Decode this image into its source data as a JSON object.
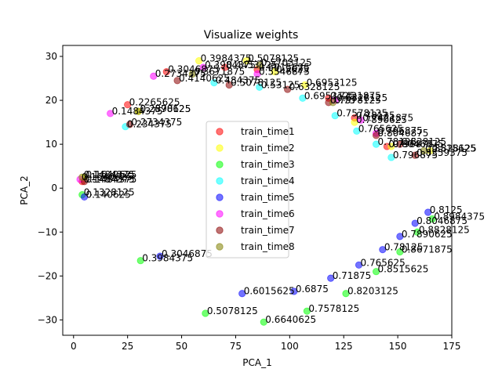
{
  "chart_data": {
    "type": "scatter",
    "title": "Visualize weights",
    "xlabel": "PCA_1",
    "ylabel": "PCA_2",
    "xlim": [
      -5,
      175
    ],
    "ylim": [
      -33.5,
      32.5
    ],
    "xticks": [
      0,
      25,
      50,
      75,
      100,
      125,
      150,
      175
    ],
    "yticks": [
      -30,
      -20,
      -10,
      0,
      10,
      20,
      30
    ],
    "grid": false,
    "legend_position": "center",
    "alpha": 0.55,
    "series": [
      {
        "name": "train_time1",
        "color": "#ff0000",
        "points": [
          {
            "x": 4,
            "y": 1.5,
            "label": "0.1484375"
          },
          {
            "x": 25,
            "y": 19,
            "label": "0.2265625"
          },
          {
            "x": 43,
            "y": 26.5,
            "label": "0.3046875"
          },
          {
            "x": 70,
            "y": 27.5,
            "label": "0.4453125"
          },
          {
            "x": 85,
            "y": 27,
            "label": "0.6015625"
          },
          {
            "x": 118,
            "y": 20.5,
            "label": "0.7421875"
          },
          {
            "x": 130,
            "y": 16,
            "label": "0.78125"
          },
          {
            "x": 145,
            "y": 9.5,
            "label": "0.796875"
          }
        ]
      },
      {
        "name": "train_time2",
        "color": "#ffff00",
        "points": [
          {
            "x": 5,
            "y": 2.5,
            "label": "0.1640625"
          },
          {
            "x": 30,
            "y": 17.5,
            "label": "0.2578125"
          },
          {
            "x": 58,
            "y": 29,
            "label": "0.3984375"
          },
          {
            "x": 80,
            "y": 29,
            "label": "0.5078125"
          },
          {
            "x": 93,
            "y": 26.5,
            "label": "0.5625"
          },
          {
            "x": 107,
            "y": 23.5,
            "label": "0.6953125"
          },
          {
            "x": 130,
            "y": 15,
            "label": "0.7890625"
          },
          {
            "x": 147,
            "y": 9.5,
            "label": "0.8046875"
          },
          {
            "x": 165,
            "y": 8.5,
            "label": "0.828125"
          }
        ]
      },
      {
        "name": "train_time3",
        "color": "#00ff00",
        "points": [
          {
            "x": 4,
            "y": -1.5,
            "label": "0.1328125"
          },
          {
            "x": 31,
            "y": -16.5,
            "label": "0.3984375"
          },
          {
            "x": 61,
            "y": -28.5,
            "label": "0.5078125"
          },
          {
            "x": 88,
            "y": -30.5,
            "label": "0.6640625"
          },
          {
            "x": 108,
            "y": -28,
            "label": "0.7578125"
          },
          {
            "x": 126,
            "y": -24,
            "label": "0.8203125"
          },
          {
            "x": 140,
            "y": -19,
            "label": "0.8515625"
          },
          {
            "x": 151,
            "y": -14.5,
            "label": "0.8671875"
          },
          {
            "x": 159,
            "y": -10,
            "label": "0.8828125"
          },
          {
            "x": 166,
            "y": -7,
            "label": "0.8984375"
          }
        ]
      },
      {
        "name": "train_time4",
        "color": "#00ffff",
        "points": [
          {
            "x": 24,
            "y": 14,
            "label": "0.234375"
          },
          {
            "x": 65,
            "y": 24,
            "label": "0.484375"
          },
          {
            "x": 86,
            "y": 23,
            "label": "0.53125"
          },
          {
            "x": 106,
            "y": 20.5,
            "label": "0.6953125"
          },
          {
            "x": 121,
            "y": 16.5,
            "label": "0.7578125"
          },
          {
            "x": 131,
            "y": 13,
            "label": "0.765625"
          },
          {
            "x": 140,
            "y": 10,
            "label": "0.78125"
          },
          {
            "x": 147,
            "y": 7,
            "label": "0.796875"
          }
        ]
      },
      {
        "name": "train_time5",
        "color": "#0000ff",
        "points": [
          {
            "x": 5,
            "y": -2,
            "label": "0.140625"
          },
          {
            "x": 40,
            "y": -15.5,
            "label": "0.3046875"
          },
          {
            "x": 78,
            "y": -24,
            "label": "0.6015625"
          },
          {
            "x": 102,
            "y": -23.5,
            "label": "0.6875"
          },
          {
            "x": 119,
            "y": -20.5,
            "label": "0.71875"
          },
          {
            "x": 132,
            "y": -17.5,
            "label": "0.765625"
          },
          {
            "x": 143,
            "y": -14,
            "label": "0.78125"
          },
          {
            "x": 151,
            "y": -11,
            "label": "0.7890625"
          },
          {
            "x": 158,
            "y": -8,
            "label": "0.8046875"
          },
          {
            "x": 164,
            "y": -5.5,
            "label": "0.8125"
          }
        ]
      },
      {
        "name": "train_time6",
        "color": "#ff00ff",
        "points": [
          {
            "x": 3,
            "y": 2,
            "label": "0.1640625"
          },
          {
            "x": 17,
            "y": 17,
            "label": "0.1484375"
          },
          {
            "x": 37,
            "y": 25.5,
            "label": "0.2734375"
          },
          {
            "x": 60,
            "y": 27.5,
            "label": "0.3984375"
          },
          {
            "x": 85,
            "y": 26,
            "label": "0.5546875"
          },
          {
            "x": 121,
            "y": 20,
            "label": "0.6328125"
          },
          {
            "x": 133,
            "y": 15.5,
            "label": "0.7421875"
          },
          {
            "x": 140,
            "y": 12.5,
            "label": "0.796875"
          }
        ]
      },
      {
        "name": "train_time7",
        "color": "#8b0000",
        "points": [
          {
            "x": 5,
            "y": 1.5,
            "label": "0.1484375"
          },
          {
            "x": 26,
            "y": 14.5,
            "label": "0.2734375"
          },
          {
            "x": 48,
            "y": 24.5,
            "label": "0.4140625"
          },
          {
            "x": 72,
            "y": 23.5,
            "label": "0.5078125"
          },
          {
            "x": 99,
            "y": 22.5,
            "label": "0.6328125"
          },
          {
            "x": 118,
            "y": 19.5,
            "label": "0.7578125"
          },
          {
            "x": 140,
            "y": 12,
            "label": "0.8046875"
          },
          {
            "x": 151,
            "y": 10,
            "label": "0.828125"
          },
          {
            "x": 158,
            "y": 7.5,
            "label": "0.8359375"
          }
        ]
      },
      {
        "name": "train_time8",
        "color": "#808000",
        "points": [
          {
            "x": 4,
            "y": 2.5,
            "label": "0.1484375"
          },
          {
            "x": 30,
            "y": 17.5,
            "label": "0.2890625"
          },
          {
            "x": 55,
            "y": 26,
            "label": "0.3671875"
          },
          {
            "x": 86,
            "y": 28,
            "label": "0.5703125"
          },
          {
            "x": 120,
            "y": 19.5,
            "label": "0.75"
          },
          {
            "x": 162,
            "y": 8.5,
            "label": "0.8515625"
          }
        ]
      }
    ]
  }
}
